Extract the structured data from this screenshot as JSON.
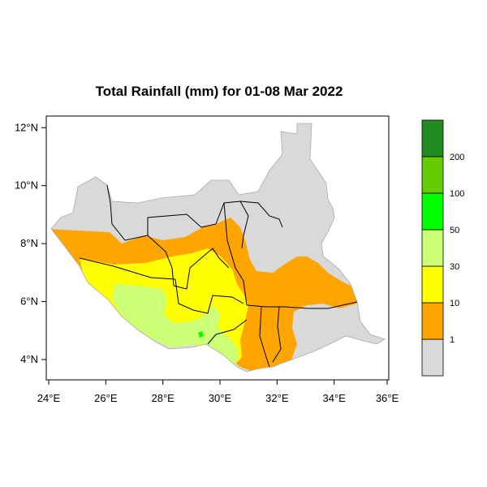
{
  "map": {
    "title": "Total Rainfall (mm) for 01-08 Mar 2022",
    "region": "South Sudan",
    "lon_range": [
      24,
      36
    ],
    "lat_range": [
      3.3,
      12.4
    ],
    "x_ticks": [
      "24°E",
      "26°E",
      "28°E",
      "30°E",
      "32°E",
      "34°E",
      "36°E"
    ],
    "y_ticks": [
      "4°N",
      "6°N",
      "8°N",
      "10°N",
      "12°N"
    ],
    "colors": {
      "no_rain": "#d9d9d9",
      "c1_10": "#ffa500",
      "c10_30": "#ffff00",
      "c30_50": "#ccff73",
      "c50_100": "#00ff00",
      "c100_200": "#66cc00",
      "c200_plus": "#228b22",
      "border": "#000000"
    }
  },
  "legend": {
    "labels": [
      "1",
      "10",
      "30",
      "50",
      "100",
      "200"
    ],
    "bins": [
      "< 1",
      "1 - 10",
      "10 - 30",
      "30 - 50",
      "50 - 100",
      "100 - 200",
      "> 200"
    ]
  }
}
